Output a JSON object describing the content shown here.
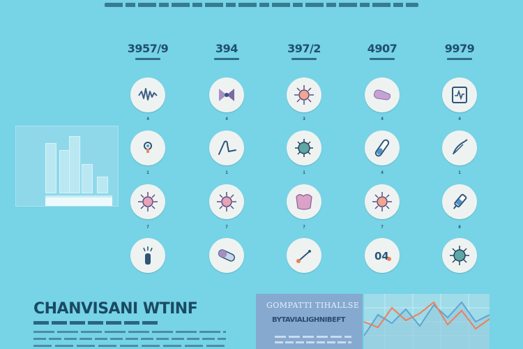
{
  "stats": [
    {
      "value": "3957/9",
      "cx": 212
    },
    {
      "value": "394",
      "cx": 325
    },
    {
      "value": "397/2",
      "cx": 436
    },
    {
      "value": "4907",
      "cx": 548
    },
    {
      "value": "9979",
      "cx": 659
    }
  ],
  "grid": {
    "row_labels": [
      [
        "4",
        "4",
        "3",
        "4",
        "4"
      ],
      [
        "1",
        "1",
        "1",
        "4",
        "1"
      ],
      [
        "7",
        "7",
        "7",
        "7",
        "8"
      ]
    ]
  },
  "headline": {
    "title": "CHANVISANI WTINF"
  },
  "card": {
    "title": "GOMPATTI TIHALLSE",
    "subtitle": "BYTAVIALIGHNIBEFT"
  },
  "colors": {
    "background": "#77d3e6",
    "circle": "#eef3f1",
    "ink": "#22566e",
    "card": "#86a9cf",
    "line_orange": "#ef7f57",
    "line_blue": "#5ea4d1"
  },
  "icons": [
    [
      "waveform-icon",
      "bow-tie-icon",
      "virus-icon",
      "pill-icon",
      "ecg-monitor-icon"
    ],
    [
      "faucet-icon",
      "glove-icon",
      "bacteria-icon",
      "vial-icon",
      "clipboard-icon"
    ],
    [
      "virus-icon",
      "virus-icon",
      "skin-patch-icon",
      "virus-icon",
      "syringe-icon"
    ],
    [
      "inhaler-icon",
      "capsule-icon",
      "thermometer-icon",
      "lab-text-icon",
      "virus-icon"
    ]
  ]
}
